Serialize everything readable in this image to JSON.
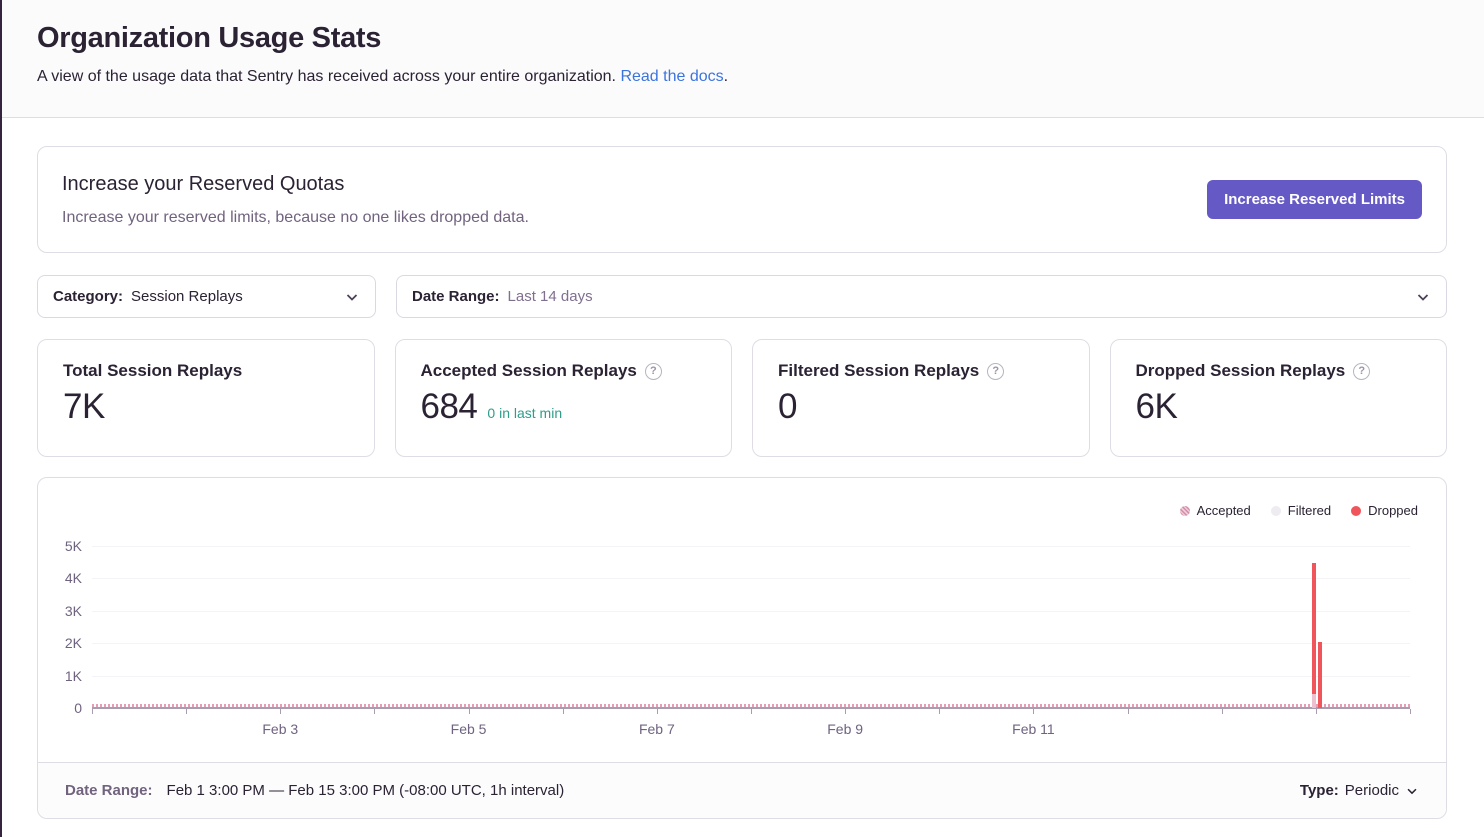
{
  "page": {
    "title": "Organization Usage Stats",
    "subtitle": "A view of the usage data that Sentry has received across your entire organization.",
    "docs_link_label": "Read the docs",
    "subtitle_suffix": "."
  },
  "quota_banner": {
    "title": "Increase your Reserved Quotas",
    "description": "Increase your reserved limits, because no one likes dropped data.",
    "button_label": "Increase Reserved Limits",
    "button_color": "#6559c5"
  },
  "filters": {
    "category": {
      "label": "Category:",
      "value": "Session Replays"
    },
    "date_range": {
      "label": "Date Range:",
      "value": "Last 14 days"
    }
  },
  "stat_cards": [
    {
      "title": "Total Session Replays",
      "value": "7K"
    },
    {
      "title": "Accepted Session Replays",
      "value": "684",
      "sub_value": "0 in last min",
      "help_icon": "?"
    },
    {
      "title": "Filtered Session Replays",
      "value": "0",
      "help_icon": "?"
    },
    {
      "title": "Dropped Session Replays",
      "value": "6K",
      "help_icon": "?"
    }
  ],
  "help_glyph": "?",
  "chart_data": {
    "type": "bar",
    "title": "",
    "legend_position": "top-right",
    "grid": true,
    "legend": [
      {
        "label": "Accepted",
        "color": "#d48da8"
      },
      {
        "label": "Filtered",
        "color": "#eeebf1"
      },
      {
        "label": "Dropped",
        "color": "#f0555b"
      }
    ],
    "ylabel": "",
    "y_ticks": [
      "5K",
      "4K",
      "3K",
      "2K",
      "1K",
      "0"
    ],
    "ylim_k": [
      0,
      5
    ],
    "x_days_total": 14,
    "x_start": "Feb 1 3:00 PM",
    "x_end": "Feb 15 3:00 PM",
    "x_tick_labels": [
      {
        "label": "Feb 3",
        "day": 2
      },
      {
        "label": "Feb 5",
        "day": 4
      },
      {
        "label": "Feb 7",
        "day": 6
      },
      {
        "label": "Feb 9",
        "day": 8
      },
      {
        "label": "Feb 11",
        "day": 10
      }
    ],
    "baseline_series_note": "Accepted events appear as tiny hourly bars hugging the zero line across the full range (total 684)",
    "bars": [
      {
        "series": "Accepted",
        "day": 12.96,
        "from_k": 0,
        "to_k": 0.42
      },
      {
        "series": "Dropped",
        "day": 12.96,
        "from_k": 0.42,
        "to_k": 4.47
      },
      {
        "series": "Dropped",
        "day": 13.02,
        "from_k": 0,
        "to_k": 2.05
      }
    ],
    "series_totals": {
      "Accepted": 684,
      "Filtered": 0,
      "Dropped": "6K",
      "Total": "7K"
    },
    "bar_colors": {
      "Accepted": "#ecc0cf",
      "Dropped": "#f0555b"
    }
  },
  "chart_footer": {
    "date_range_label": "Date Range:",
    "date_range_value": "Feb 1 3:00 PM — Feb 15 3:00 PM (-08:00 UTC, 1h interval)",
    "type_label": "Type:",
    "type_value": "Periodic"
  }
}
